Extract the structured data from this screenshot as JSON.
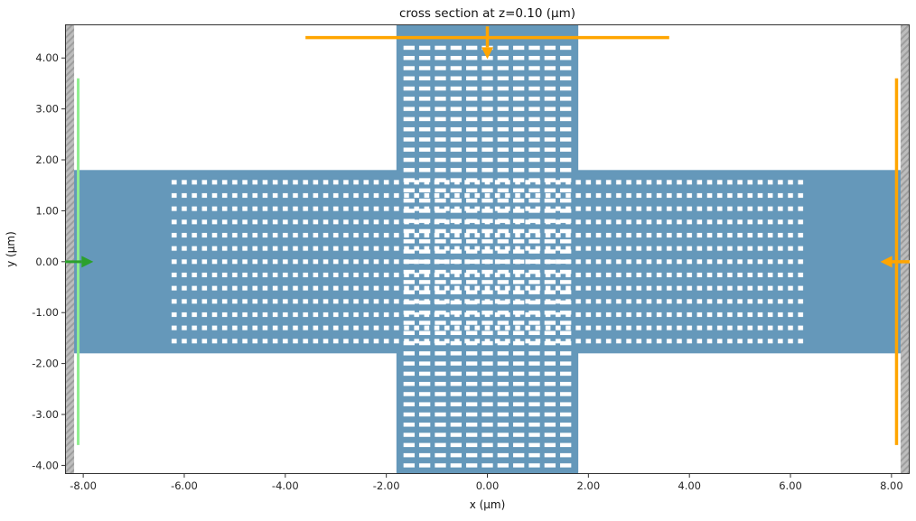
{
  "chart_data": {
    "type": "heatmap",
    "description": "FDTD simulation cross-section plot of a subwavelength-grating waveguide crossing: blue dielectric cross-shaped waveguides with periodic white gap arrays, gray PML boundary strips at left/right edges, a green mode source plane on the left and orange flux monitor planes at top and right.",
    "title": "cross section at z=0.10 (μm)",
    "xlabel": "x (μm)",
    "ylabel": "y (μm)",
    "xlim": [
      -8.36,
      8.36
    ],
    "ylim": [
      -4.17,
      4.66
    ],
    "grid": false,
    "legend": null,
    "xticks": {
      "values": [
        -8,
        -6,
        -4,
        -2,
        0,
        2,
        4,
        6,
        8
      ],
      "labels": [
        "-8.00",
        "-6.00",
        "-4.00",
        "-2.00",
        "0.00",
        "2.00",
        "4.00",
        "6.00",
        "8.00"
      ]
    },
    "yticks": {
      "values": [
        4,
        3,
        2,
        1,
        0,
        -1,
        -2,
        -3,
        -4
      ],
      "labels": [
        "4.00",
        "3.00",
        "2.00",
        "1.00",
        "0.00",
        "-1.00",
        "-2.00",
        "-3.00",
        "-4.00"
      ]
    },
    "colors": {
      "medium": "#6598ba",
      "hole": "#ffffff",
      "pml_fill": "#bdbdbd",
      "pml_hatch": "#9e9e9e",
      "source_plane": "#90ee90",
      "source_arrow": "#2ca02c",
      "monitor": "#ffa500",
      "spine": "#333333",
      "tick_label": "#262626",
      "background": "#ffffff"
    },
    "structures": [
      {
        "name": "waveguide-horizontal-arm",
        "x": [
          -8.36,
          8.36
        ],
        "y": [
          -1.8,
          1.8
        ]
      },
      {
        "name": "waveguide-vertical-arm",
        "x": [
          -1.8,
          1.8
        ],
        "y": [
          -4.17,
          4.66
        ]
      }
    ],
    "hole_arrays": [
      {
        "name": "swg-gaps-horizontal-arm",
        "x_start": -6.2,
        "x_end": 6.2,
        "x_period": 0.2,
        "y_start": -1.56,
        "y_end": 1.56,
        "y_period": 0.26,
        "hole_width": 0.1,
        "hole_height": 0.09
      },
      {
        "name": "swg-gaps-vertical-arm",
        "x_start": -1.55,
        "x_end": 1.55,
        "x_period": 0.31,
        "y_start": -4.0,
        "y_end": 4.2,
        "y_period": 0.2,
        "hole_width": 0.22,
        "hole_height": 0.08
      }
    ],
    "pml_regions": [
      {
        "name": "pml-left",
        "x": [
          -8.36,
          -8.18
        ],
        "y": [
          -4.17,
          4.66
        ]
      },
      {
        "name": "pml-right",
        "x": [
          8.18,
          8.36
        ],
        "y": [
          -4.17,
          4.66
        ]
      }
    ],
    "source": {
      "name": "mode-source",
      "plane": {
        "x": -8.1,
        "y": [
          -3.6,
          3.6
        ]
      },
      "arrow": {
        "from": [
          -8.36,
          0
        ],
        "to": [
          -7.8,
          0
        ]
      }
    },
    "monitors": [
      {
        "name": "monitor-top",
        "plane": {
          "y": 4.4,
          "x": [
            -3.6,
            3.6
          ]
        },
        "arrow": {
          "from": [
            0,
            4.62
          ],
          "to": [
            0,
            3.98
          ]
        }
      },
      {
        "name": "monitor-right",
        "plane": {
          "x": 8.1,
          "y": [
            -3.6,
            3.6
          ]
        },
        "arrow": {
          "from": [
            8.36,
            0
          ],
          "to": [
            7.78,
            0
          ]
        }
      }
    ]
  }
}
